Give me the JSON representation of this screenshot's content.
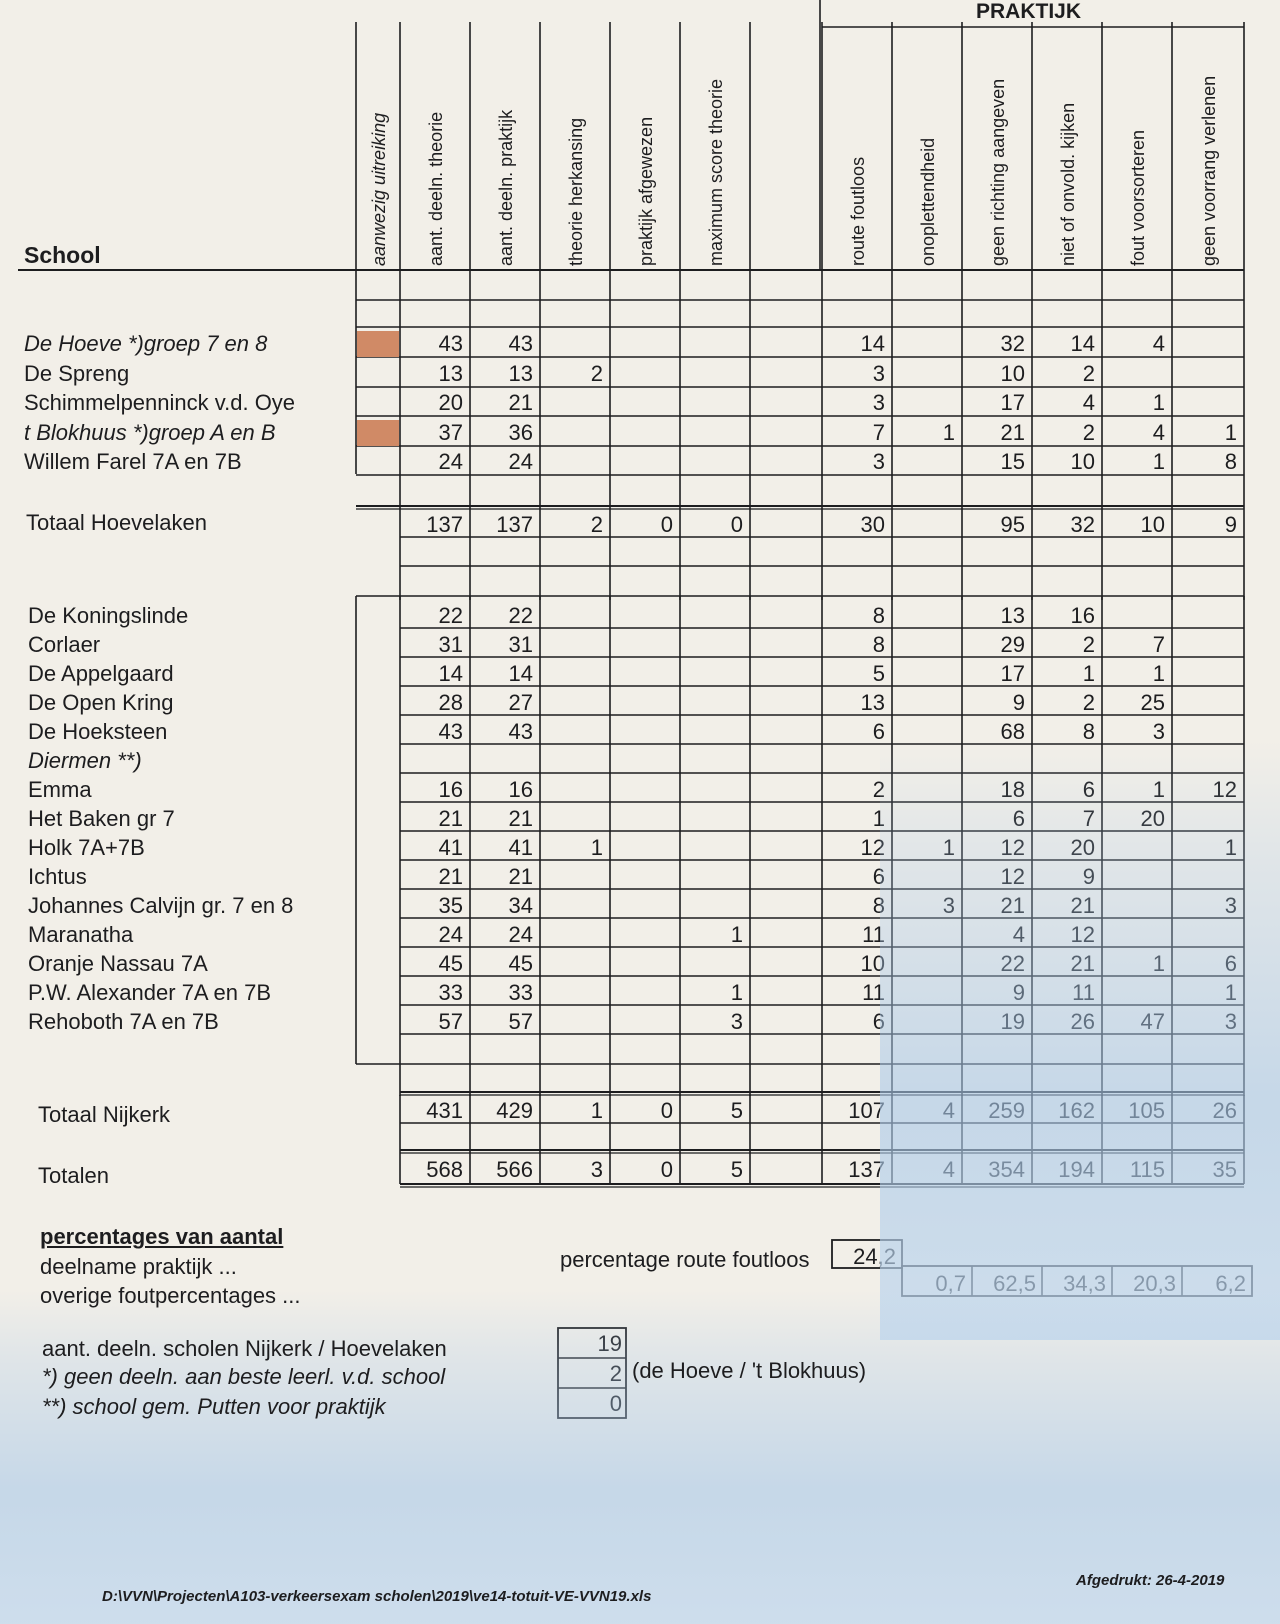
{
  "header": {
    "section_label": "PRAKTIJK",
    "school_label": "School",
    "columns": [
      "aanwezig uitreiking",
      "aant. deeln. theorie",
      "aant. deeln. praktijk",
      "theorie herkansing",
      "praktijk afgewezen",
      "maximum score theorie",
      "",
      "route foutloos",
      "onoplettendheid",
      "geen richting aangeven",
      "niet of onvold. kijken",
      "fout voorsorteren",
      "geen voorrang verlenen"
    ]
  },
  "group1": {
    "rows": [
      {
        "name": "De Hoeve *)groep 7 en 8",
        "italic": true,
        "marked": true,
        "vals": [
          "43",
          "43",
          "",
          "",
          "",
          "",
          "14",
          "",
          "32",
          "14",
          "4",
          ""
        ]
      },
      {
        "name": "De Spreng",
        "italic": false,
        "marked": false,
        "vals": [
          "13",
          "13",
          "2",
          "",
          "",
          "",
          "3",
          "",
          "10",
          "2",
          "",
          ""
        ]
      },
      {
        "name": "Schimmelpenninck v.d. Oye",
        "italic": false,
        "marked": false,
        "vals": [
          "20",
          "21",
          "",
          "",
          "",
          "",
          "3",
          "",
          "17",
          "4",
          "1",
          ""
        ]
      },
      {
        "name": "t Blokhuus *)groep A en B",
        "italic": true,
        "marked": true,
        "vals": [
          "37",
          "36",
          "",
          "",
          "",
          "",
          "7",
          "1",
          "21",
          "2",
          "4",
          "1"
        ]
      },
      {
        "name": "Willem Farel 7A en 7B",
        "italic": false,
        "marked": false,
        "vals": [
          "24",
          "24",
          "",
          "",
          "",
          "",
          "3",
          "",
          "15",
          "10",
          "1",
          "8"
        ]
      }
    ],
    "total": {
      "name": "Totaal Hoevelaken",
      "vals": [
        "137",
        "137",
        "2",
        "0",
        "0",
        "",
        "30",
        "",
        "95",
        "32",
        "10",
        "9"
      ]
    }
  },
  "group2": {
    "rows": [
      {
        "name": "De Koningslinde",
        "italic": false,
        "vals": [
          "22",
          "22",
          "",
          "",
          "",
          "",
          "8",
          "",
          "13",
          "16",
          "",
          ""
        ]
      },
      {
        "name": "Corlaer",
        "italic": false,
        "vals": [
          "31",
          "31",
          "",
          "",
          "",
          "",
          "8",
          "",
          "29",
          "2",
          "7",
          ""
        ]
      },
      {
        "name": "De Appelgaard",
        "italic": false,
        "vals": [
          "14",
          "14",
          "",
          "",
          "",
          "",
          "5",
          "",
          "17",
          "1",
          "1",
          ""
        ]
      },
      {
        "name": "De Open Kring",
        "italic": false,
        "vals": [
          "28",
          "27",
          "",
          "",
          "",
          "",
          "13",
          "",
          "9",
          "2",
          "25",
          ""
        ]
      },
      {
        "name": "De Hoeksteen",
        "italic": false,
        "vals": [
          "43",
          "43",
          "",
          "",
          "",
          "",
          "6",
          "",
          "68",
          "8",
          "3",
          ""
        ]
      },
      {
        "name": "Diermen **)",
        "italic": true,
        "vals": [
          "",
          "",
          "",
          "",
          "",
          "",
          "",
          "",
          "",
          "",
          "",
          ""
        ]
      },
      {
        "name": "Emma",
        "italic": false,
        "vals": [
          "16",
          "16",
          "",
          "",
          "",
          "",
          "2",
          "",
          "18",
          "6",
          "1",
          "12"
        ]
      },
      {
        "name": "Het Baken gr 7",
        "italic": false,
        "vals": [
          "21",
          "21",
          "",
          "",
          "",
          "",
          "1",
          "",
          "6",
          "7",
          "20",
          ""
        ]
      },
      {
        "name": "Holk 7A+7B",
        "italic": false,
        "vals": [
          "41",
          "41",
          "1",
          "",
          "",
          "",
          "12",
          "1",
          "12",
          "20",
          "",
          "1"
        ]
      },
      {
        "name": "Ichtus",
        "italic": false,
        "vals": [
          "21",
          "21",
          "",
          "",
          "",
          "",
          "6",
          "",
          "12",
          "9",
          "",
          ""
        ]
      },
      {
        "name": "Johannes Calvijn gr. 7 en 8",
        "italic": false,
        "vals": [
          "35",
          "34",
          "",
          "",
          "",
          "",
          "8",
          "3",
          "21",
          "21",
          "",
          "3"
        ]
      },
      {
        "name": "Maranatha",
        "italic": false,
        "vals": [
          "24",
          "24",
          "",
          "",
          "1",
          "",
          "11",
          "",
          "4",
          "12",
          "",
          ""
        ]
      },
      {
        "name": "Oranje Nassau 7A",
        "italic": false,
        "vals": [
          "45",
          "45",
          "",
          "",
          "",
          "",
          "10",
          "",
          "22",
          "21",
          "1",
          "6"
        ]
      },
      {
        "name": "P.W. Alexander  7A en 7B",
        "italic": false,
        "vals": [
          "33",
          "33",
          "",
          "",
          "1",
          "",
          "11",
          "",
          "9",
          "11",
          "",
          "1"
        ]
      },
      {
        "name": "Rehoboth 7A en 7B",
        "italic": false,
        "vals": [
          "57",
          "57",
          "",
          "",
          "3",
          "",
          "6",
          "",
          "19",
          "26",
          "47",
          "3"
        ]
      }
    ],
    "total": {
      "name": "Totaal Nijkerk",
      "vals": [
        "431",
        "429",
        "1",
        "0",
        "5",
        "",
        "107",
        "4",
        "259",
        "162",
        "105",
        "26"
      ]
    }
  },
  "grand_total": {
    "name": "Totalen",
    "vals": [
      "568",
      "566",
      "3",
      "0",
      "5",
      "",
      "137",
      "4",
      "354",
      "194",
      "115",
      "35"
    ]
  },
  "percentages": {
    "heading": "percentages van aantal",
    "line1": "deelname praktijk ...",
    "line2": "overige foutpercentages ...",
    "route_label": "percentage route foutloos",
    "route_value": "24,2",
    "others": [
      "0,7",
      "62,5",
      "34,3",
      "20,3",
      "6,2"
    ]
  },
  "counts": {
    "line1": "aant. deeln. scholen Nijkerk / Hoevelaken",
    "line2": "*) geen deeln. aan beste leerl. v.d. school",
    "line3": "**) school gem. Putten voor praktijk",
    "values": [
      "19",
      "2",
      "0"
    ],
    "note": "(de Hoeve / 't Blokhuus)"
  },
  "footer": {
    "path": "D:\\VVN\\Projecten\\A103-verkeersexam scholen\\2019\\ve14-totuit-VE-VVN19.xls",
    "printed": "Afgedrukt: 26-4-2019"
  },
  "colors": {
    "ink": "#1d1d1f",
    "marker": "#d08a66",
    "paper": "#f2efe8",
    "shadow_blue": "#a8c8e8"
  }
}
